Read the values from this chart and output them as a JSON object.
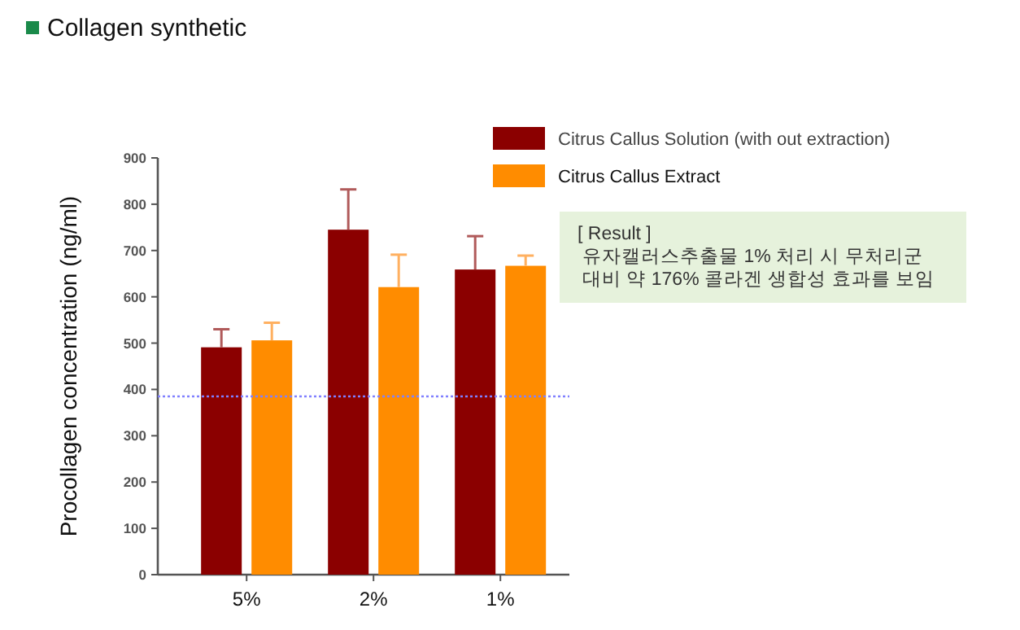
{
  "chart_data": {
    "type": "bar",
    "title": "Collagen synthetic",
    "ylabel": "Procollagen concentration (ng/ml)",
    "categories": [
      "5%",
      "2%",
      "1%"
    ],
    "series": [
      {
        "name": "Citrus Callus Solution (with out extraction)",
        "color": "#8b0000",
        "values": [
          491,
          745,
          659
        ],
        "errors": [
          [
            491,
            530
          ],
          [
            745,
            832
          ],
          [
            659,
            731
          ]
        ]
      },
      {
        "name": "Citrus Callus Extract",
        "color": "#ff8c00",
        "values": [
          506,
          621,
          667
        ],
        "errors": [
          [
            506,
            544
          ],
          [
            621,
            691
          ],
          [
            667,
            689
          ]
        ]
      }
    ],
    "ylim": [
      0,
      900
    ],
    "yticks": [
      0,
      100,
      200,
      300,
      400,
      500,
      600,
      700,
      800,
      900
    ],
    "ref_lines": [
      {
        "axis": "y",
        "value": 385,
        "color": "#8080ff",
        "line_style": "dotted"
      }
    ],
    "annotations": [
      "[ Result ]",
      "유자캘러스추출물 1% 처리 시 무처리군 대비 약 176% 콜라겐 생합성 효과를 보임"
    ],
    "legend": "top right"
  }
}
